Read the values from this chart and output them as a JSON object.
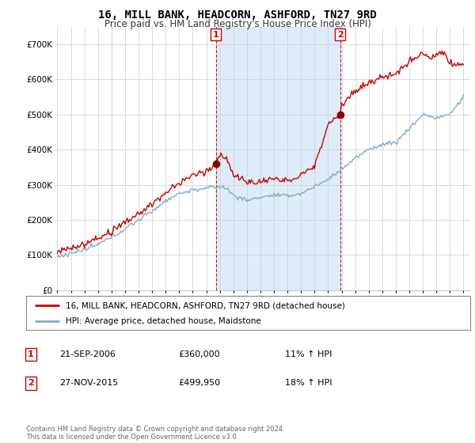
{
  "title": "16, MILL BANK, HEADCORN, ASHFORD, TN27 9RD",
  "subtitle": "Price paid vs. HM Land Registry's House Price Index (HPI)",
  "yticks": [
    0,
    100000,
    200000,
    300000,
    400000,
    500000,
    600000,
    700000
  ],
  "ytick_labels": [
    "£0",
    "£100K",
    "£200K",
    "£300K",
    "£400K",
    "£500K",
    "£600K",
    "£700K"
  ],
  "ylim": [
    0,
    750000
  ],
  "xlim_start": 1994.8,
  "xlim_end": 2025.5,
  "purchase1_year": 2006.72,
  "purchase1_price": 360000,
  "purchase1_label": "1",
  "purchase2_year": 2015.9,
  "purchase2_price": 499950,
  "purchase2_label": "2",
  "line_color_property": "#cc0000",
  "line_color_hpi": "#88aacc",
  "shade_color": "#d0e4f7",
  "background_color": "#ffffff",
  "plot_bg_color": "#ffffff",
  "grid_color": "#cccccc",
  "legend_property": "16, MILL BANK, HEADCORN, ASHFORD, TN27 9RD (detached house)",
  "legend_hpi": "HPI: Average price, detached house, Maidstone",
  "table_rows": [
    {
      "num": "1",
      "date": "21-SEP-2006",
      "price": "£360,000",
      "hpi": "11% ↑ HPI"
    },
    {
      "num": "2",
      "date": "27-NOV-2015",
      "price": "£499,950",
      "hpi": "18% ↑ HPI"
    }
  ],
  "footnote": "Contains HM Land Registry data © Crown copyright and database right 2024.\nThis data is licensed under the Open Government Licence v3.0.",
  "xticks": [
    1995,
    1996,
    1997,
    1998,
    1999,
    2000,
    2001,
    2002,
    2003,
    2004,
    2005,
    2006,
    2007,
    2008,
    2009,
    2010,
    2011,
    2012,
    2013,
    2014,
    2015,
    2016,
    2017,
    2018,
    2019,
    2020,
    2021,
    2022,
    2023,
    2024,
    2025
  ]
}
